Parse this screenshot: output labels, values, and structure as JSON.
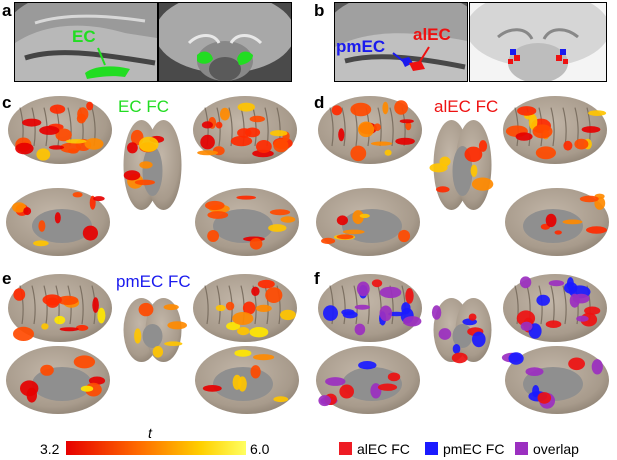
{
  "panels": {
    "a": {
      "label": "a",
      "region_label": "EC"
    },
    "b": {
      "label": "b",
      "region_label_1": "pmEC",
      "region_label_2": "alEC"
    },
    "c": {
      "label": "c",
      "title": "EC FC"
    },
    "d": {
      "label": "d",
      "title": "alEC FC"
    },
    "e": {
      "label": "e",
      "title": "pmEC FC"
    },
    "f": {
      "label": "f"
    }
  },
  "colorbar": {
    "min_label": "3.2",
    "max_label": "6.0",
    "variable": "t",
    "colors": [
      "#e60000",
      "#ff6a00",
      "#ffd000",
      "#ffff60"
    ]
  },
  "legend": {
    "items": [
      {
        "label": "alEC FC",
        "color": "#ee1c24"
      },
      {
        "label": "pmEC FC",
        "color": "#1a1aff"
      },
      {
        "label": "overlap",
        "color": "#9b2fc0"
      }
    ]
  },
  "colors": {
    "ec": "#22dd22",
    "alec": "#ee1111",
    "pmec": "#1a1aee",
    "brain": "#a89b8c",
    "medial_wall": "#8f8f8f"
  }
}
